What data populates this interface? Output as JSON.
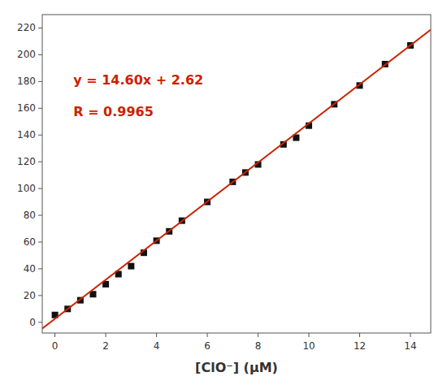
{
  "chart_data": {
    "type": "scatter",
    "x_label": "[ClO⁻] (μM)",
    "xlim": [
      -0.5,
      14.8
    ],
    "ylim": [
      -8,
      230
    ],
    "xticks": [
      0,
      2,
      4,
      6,
      8,
      10,
      12,
      14
    ],
    "yticks": [
      0,
      20,
      40,
      60,
      80,
      100,
      120,
      140,
      160,
      180,
      200,
      220
    ],
    "grid": false,
    "series": [
      {
        "type": "scatter",
        "color": "#111111",
        "marker": "square",
        "x": [
          0.0,
          0.5,
          1.0,
          1.5,
          2.0,
          2.5,
          3.0,
          3.5,
          4.0,
          4.5,
          5.0,
          6.0,
          7.0,
          7.5,
          8.0,
          9.0,
          9.5,
          10.0,
          11.0,
          12.0,
          13.0,
          14.0
        ],
        "values": [
          5.5,
          10.0,
          16.5,
          21.0,
          28.5,
          36.0,
          42.0,
          52.0,
          61.0,
          68.0,
          76.0,
          90.0,
          105.0,
          112.0,
          118.0,
          133.0,
          138.0,
          147.0,
          163.0,
          177.0,
          193.0,
          207.0
        ]
      },
      {
        "type": "line",
        "color": "#cc2200",
        "line_style": "solid",
        "x": [
          -0.5,
          14.8
        ],
        "values": [
          -4.68,
          218.7
        ]
      }
    ],
    "annotations": [
      {
        "text": "y = 14.60x + 2.62",
        "color": "#cc2200"
      },
      {
        "text": "R = 0.9965",
        "color": "#cc2200"
      }
    ]
  }
}
